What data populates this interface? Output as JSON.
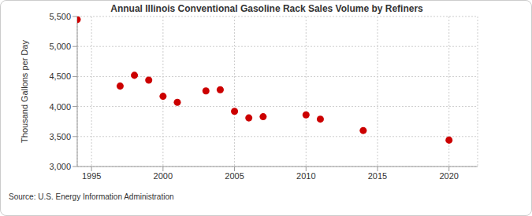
{
  "chart_data": {
    "type": "scatter",
    "title": "Annual Illinois Conventional Gasoline Rack Sales Volume by Refiners",
    "y_label": "Thousand Gallons per Day",
    "source": "Source: U.S. Energy Information Administration",
    "x": [
      1994,
      1997,
      1998,
      1999,
      2000,
      2001,
      2003,
      2004,
      2005,
      2006,
      2007,
      2010,
      2011,
      2014,
      2020
    ],
    "values": [
      5450,
      4340,
      4520,
      4440,
      4170,
      4070,
      4260,
      4280,
      3920,
      3810,
      3830,
      3860,
      3790,
      3600,
      3440
    ],
    "color": "#cc0000",
    "marker": "circle",
    "xlim": [
      1994,
      2022
    ],
    "xticks": [
      1995,
      2000,
      2005,
      2010,
      2015,
      2020
    ],
    "ylim": [
      3000,
      5500
    ],
    "yticks": [
      {
        "value": 3000,
        "label": "3,000"
      },
      {
        "value": 3500,
        "label": "3,500"
      },
      {
        "value": 4000,
        "label": "4,000"
      },
      {
        "value": 4500,
        "label": "4,500"
      },
      {
        "value": 5000,
        "label": "5,000"
      },
      {
        "value": 5500,
        "label": "5,500"
      }
    ],
    "grid": true
  }
}
